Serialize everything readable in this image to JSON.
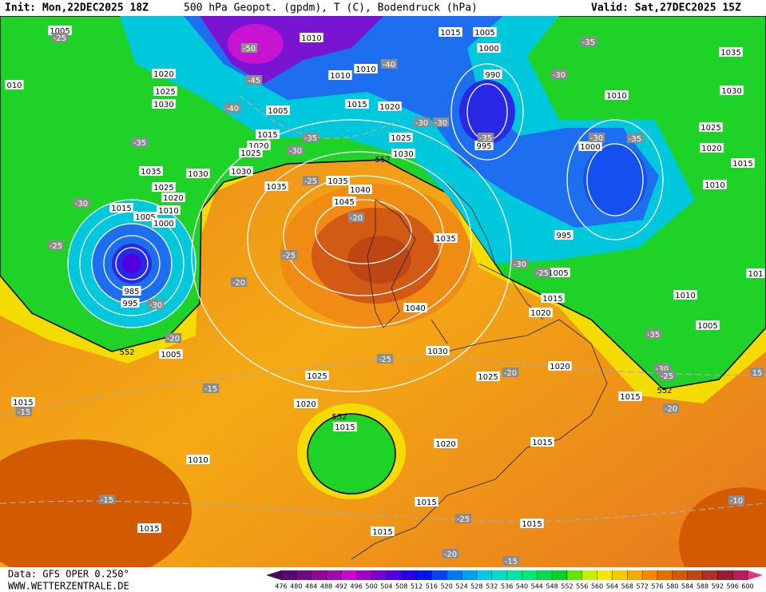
{
  "header": {
    "init": "Init: Mon,22DEC2025 18Z",
    "title": "500 hPa Geopot. (gpdm), T (C), Bodendruck (hPa)",
    "valid": "Valid: Sat,27DEC2025 15Z"
  },
  "footer": {
    "data": "Data: GFS OPER 0.250°",
    "site": "WWW.WETTERZENTRALE.DE"
  },
  "legend": {
    "ticks": [
      476,
      480,
      484,
      488,
      492,
      496,
      500,
      504,
      508,
      512,
      516,
      520,
      524,
      528,
      532,
      536,
      540,
      544,
      548,
      552,
      556,
      560,
      564,
      568,
      572,
      576,
      580,
      584,
      588,
      592,
      596,
      600
    ],
    "colors": [
      "#4b0a5a",
      "#5a0a6e",
      "#6e0a82",
      "#8c0a96",
      "#a00aaa",
      "#c80ac8",
      "#a000c8",
      "#7800d2",
      "#5000dc",
      "#2800e6",
      "#0014f0",
      "#0046f5",
      "#0078f5",
      "#00a0f0",
      "#00c8e6",
      "#00dcc8",
      "#00e6a0",
      "#00e678",
      "#00dc50",
      "#00d228",
      "#64e600",
      "#c8f000",
      "#f5e600",
      "#f5c800",
      "#f5aa00",
      "#f58c00",
      "#e66e00",
      "#d25a00",
      "#be4614",
      "#aa3228",
      "#961e32",
      "#b41e5a",
      "#e6328c"
    ]
  },
  "map": {
    "pressure_labels": [
      "1005",
      "1010",
      "1015",
      "1005",
      "1000",
      "1035",
      "010",
      "1020",
      "1010",
      "1010",
      "990",
      "1025",
      "1030",
      "1005",
      "1015",
      "1020",
      "1010",
      "1030",
      "1015",
      "1025",
      "1020",
      "1025",
      "995",
      "1000",
      "1025",
      "1020",
      "1030",
      "1035",
      "1030",
      "1030",
      "1035",
      "1035",
      "1040",
      "1025",
      "1020",
      "1045",
      "1015",
      "1010",
      "1005",
      "1000",
      "1015",
      "1010",
      "1035",
      "995",
      "1005",
      "985",
      "995",
      "1015",
      "1020",
      "1040",
      "1010",
      "1005",
      "101",
      "1005",
      "1030",
      "1020",
      "1025",
      "1025",
      "1015",
      "1015",
      "1020",
      "1015",
      "1020",
      "1015",
      "1010",
      "1015",
      "1015",
      "1015",
      "1015"
    ],
    "temp_labels": [
      "-25",
      "-50",
      "-45",
      "-40",
      "-30",
      "-35",
      "-40",
      "-30",
      "-30",
      "-35",
      "-35",
      "-30",
      "-35",
      "-30",
      "-35",
      "-25",
      "-30",
      "-25",
      "-20",
      "-25",
      "-20",
      "-30",
      "-30",
      "-25",
      "-20",
      "-25",
      "-15",
      "-20",
      "-35",
      "-30",
      "-25",
      "-20",
      "-15",
      "-15",
      "-25",
      "-20",
      "-15",
      "-10",
      "15"
    ],
    "height_labels": [
      "552",
      "552",
      "552",
      "552"
    ]
  }
}
